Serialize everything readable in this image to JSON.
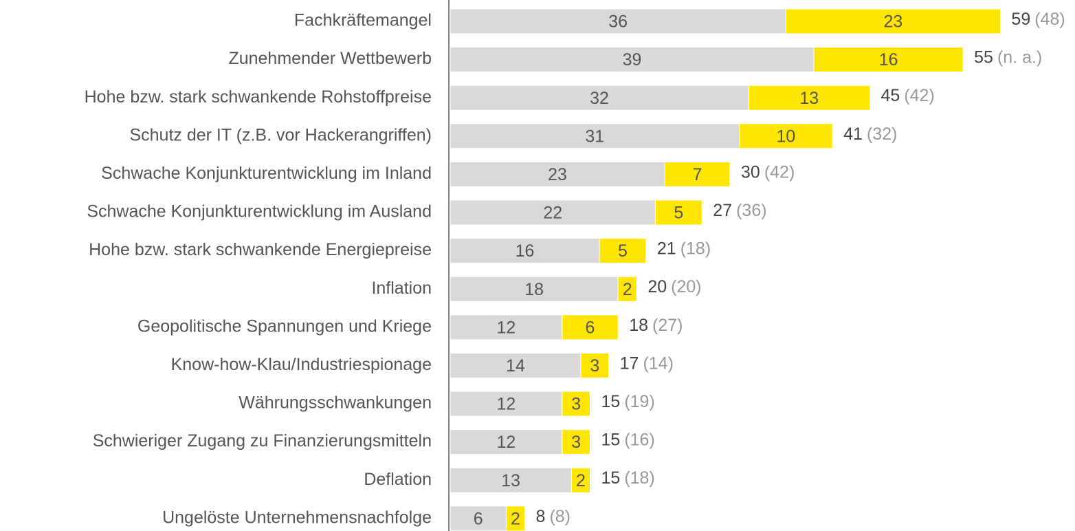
{
  "chart_data": {
    "type": "stacked-bar-horizontal",
    "categories": [
      "Fachkräftemangel",
      "Zunehmender Wettbewerb",
      "Hohe bzw. stark schwankende Rohstoffpreise",
      "Schutz der IT (z.B. vor Hackerangriffen)",
      "Schwache Konjunkturentwicklung im Inland",
      "Schwache Konjunkturentwicklung im Ausland",
      "Hohe bzw. stark schwankende Energiepreise",
      "Inflation",
      "Geopolitische Spannungen und Kriege",
      "Know-how-Klau/Industriespionage",
      "Währungsschwankungen",
      "Schwieriger Zugang zu Finanzierungsmitteln",
      "Deflation",
      "Ungelöste Unternehmensnachfolge"
    ],
    "series": [
      {
        "color": "#d9d9d9",
        "values": [
          36,
          39,
          32,
          31,
          23,
          22,
          16,
          18,
          12,
          14,
          12,
          12,
          13,
          6
        ]
      },
      {
        "color": "#ffe600",
        "values": [
          23,
          16,
          13,
          10,
          7,
          5,
          5,
          2,
          6,
          3,
          3,
          3,
          2,
          2
        ]
      }
    ],
    "totals": [
      59,
      55,
      45,
      41,
      30,
      27,
      21,
      20,
      18,
      17,
      15,
      15,
      15,
      8
    ],
    "previous": [
      "(48)",
      "(n. a.)",
      "(42)",
      "(32)",
      "(42)",
      "(36)",
      "(18)",
      "(20)",
      "(27)",
      "(14)",
      "(19)",
      "(16)",
      "(18)",
      "(8)"
    ],
    "xlim": [
      0,
      60
    ]
  }
}
